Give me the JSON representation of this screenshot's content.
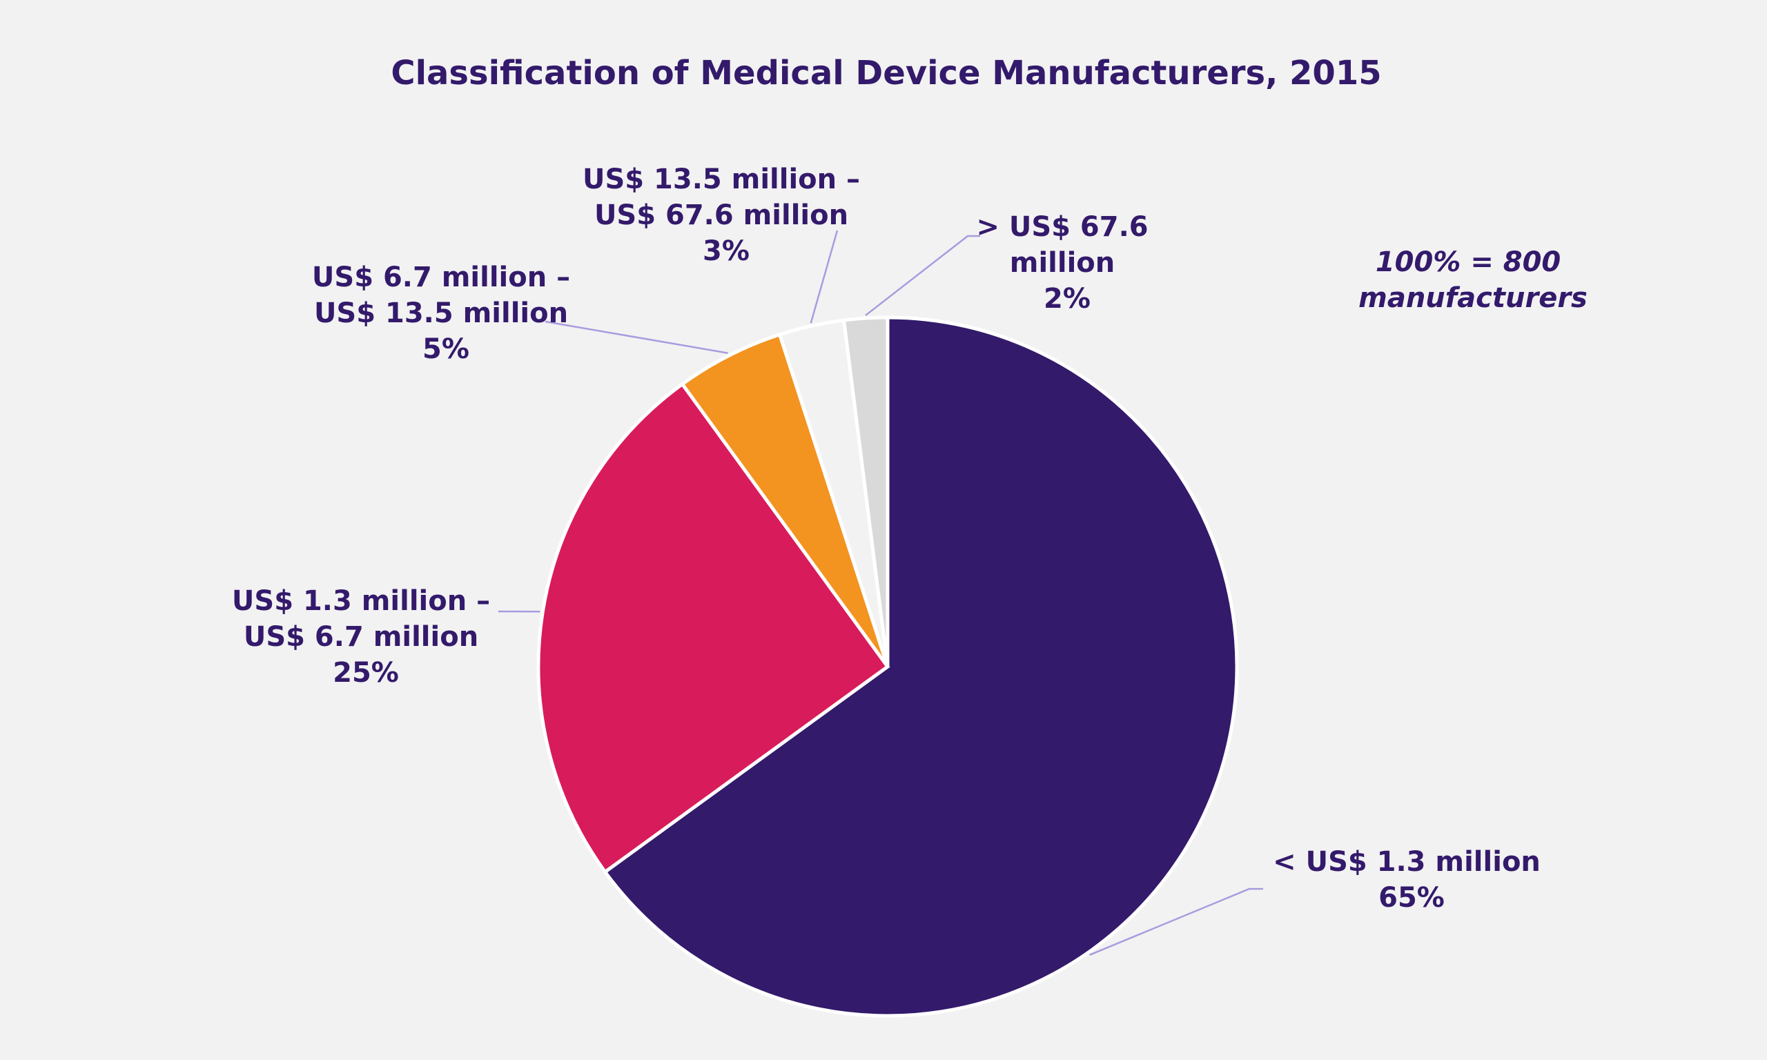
{
  "chart_data": {
    "type": "pie",
    "title": "Classification of Medical Device Manufacturers, 2015",
    "note_lines": [
      "100% = 800",
      "manufacturers"
    ],
    "start_angle_deg": 0,
    "direction": "clockwise",
    "slices": [
      {
        "label_lines": [
          "< US$ 1.3 million",
          "65%"
        ],
        "value": 65,
        "color": "#331a6b"
      },
      {
        "label_lines": [
          "US$ 1.3 million –",
          "US$ 6.7 million",
          "25%"
        ],
        "value": 25,
        "color": "#d81b5a"
      },
      {
        "label_lines": [
          "US$ 6.7 million –",
          "US$ 13.5 million",
          "5%"
        ],
        "value": 5,
        "color": "#f39320"
      },
      {
        "label_lines": [
          "US$ 13.5 million –",
          "US$ 67.6 million",
          "3%"
        ],
        "value": 3,
        "color": "#f2f2f2"
      },
      {
        "label_lines": [
          "> US$ 67.6",
          "million",
          "2%"
        ],
        "value": 2,
        "color": "#d9d9d9"
      }
    ]
  }
}
